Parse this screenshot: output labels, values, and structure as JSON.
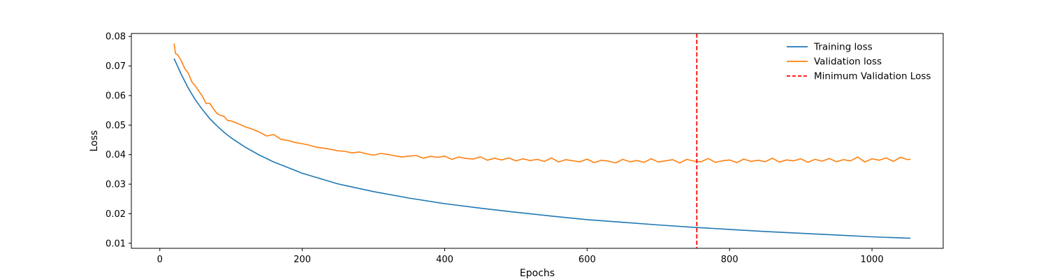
{
  "chart_data": {
    "type": "line",
    "title": "",
    "xlabel": "Epochs",
    "ylabel": "Loss",
    "xlim": [
      -40,
      1100
    ],
    "ylim": [
      0.0083,
      0.081
    ],
    "xticks": [
      0,
      200,
      400,
      600,
      800,
      1000
    ],
    "xtick_labels": [
      "0",
      "200",
      "400",
      "600",
      "800",
      "1000"
    ],
    "yticks": [
      0.01,
      0.02,
      0.03,
      0.04,
      0.05,
      0.06,
      0.07,
      0.08
    ],
    "ytick_labels": [
      "0.01",
      "0.02",
      "0.03",
      "0.04",
      "0.05",
      "0.06",
      "0.07",
      "0.08"
    ],
    "grid": false,
    "legend_position": "top-right",
    "series": [
      {
        "name": "Training loss",
        "color": "#1f77b4",
        "style": "solid",
        "x": [
          20,
          30,
          40,
          50,
          60,
          70,
          80,
          90,
          100,
          120,
          140,
          160,
          180,
          200,
          250,
          300,
          350,
          400,
          450,
          500,
          550,
          600,
          650,
          700,
          750,
          800,
          850,
          900,
          950,
          1000,
          1054
        ],
        "y": [
          0.0725,
          0.0672,
          0.0625,
          0.0585,
          0.0552,
          0.0522,
          0.0498,
          0.0476,
          0.0457,
          0.0425,
          0.0398,
          0.0375,
          0.0356,
          0.0337,
          0.0301,
          0.0275,
          0.0253,
          0.0234,
          0.0219,
          0.0205,
          0.0192,
          0.018,
          0.0171,
          0.0162,
          0.0154,
          0.0147,
          0.014,
          0.0134,
          0.0128,
          0.0122,
          0.0117
        ]
      },
      {
        "name": "Validation loss",
        "color": "#ff7f0e",
        "style": "solid",
        "x": [
          20,
          22,
          25,
          30,
          35,
          40,
          45,
          50,
          55,
          60,
          65,
          70,
          75,
          80,
          85,
          90,
          95,
          100,
          110,
          120,
          130,
          140,
          150,
          160,
          170,
          180,
          190,
          200,
          210,
          220,
          230,
          240,
          250,
          260,
          270,
          280,
          290,
          300,
          310,
          320,
          330,
          340,
          350,
          360,
          370,
          380,
          390,
          400,
          410,
          420,
          430,
          440,
          450,
          460,
          470,
          480,
          490,
          500,
          510,
          520,
          530,
          540,
          550,
          560,
          570,
          580,
          590,
          600,
          610,
          620,
          630,
          640,
          650,
          660,
          670,
          680,
          690,
          700,
          710,
          720,
          730,
          740,
          750,
          760,
          770,
          780,
          790,
          800,
          810,
          820,
          830,
          840,
          850,
          860,
          870,
          880,
          890,
          900,
          910,
          920,
          930,
          940,
          950,
          960,
          970,
          980,
          990,
          1000,
          1010,
          1020,
          1030,
          1040,
          1050,
          1054
        ],
        "y": [
          0.0776,
          0.0742,
          0.0738,
          0.0718,
          0.0692,
          0.0676,
          0.0646,
          0.0632,
          0.0614,
          0.0597,
          0.0573,
          0.0574,
          0.0556,
          0.054,
          0.0533,
          0.053,
          0.0516,
          0.0514,
          0.0505,
          0.0494,
          0.0486,
          0.0476,
          0.0463,
          0.0468,
          0.0452,
          0.0448,
          0.0441,
          0.0437,
          0.0432,
          0.0425,
          0.0422,
          0.0418,
          0.0413,
          0.0411,
          0.0406,
          0.0409,
          0.0403,
          0.0398,
          0.0404,
          0.0401,
          0.0396,
          0.0392,
          0.0395,
          0.0397,
          0.0388,
          0.0394,
          0.0391,
          0.0395,
          0.0384,
          0.0392,
          0.0387,
          0.0385,
          0.0393,
          0.0381,
          0.0388,
          0.0382,
          0.0389,
          0.0379,
          0.0386,
          0.038,
          0.0384,
          0.0377,
          0.0389,
          0.0375,
          0.0383,
          0.0379,
          0.0376,
          0.0385,
          0.0373,
          0.0381,
          0.0378,
          0.0372,
          0.0384,
          0.0376,
          0.038,
          0.0374,
          0.0386,
          0.0375,
          0.0379,
          0.0383,
          0.0372,
          0.0384,
          0.0378,
          0.0376,
          0.0387,
          0.0374,
          0.0379,
          0.0382,
          0.0373,
          0.0385,
          0.0377,
          0.0381,
          0.0376,
          0.0388,
          0.0375,
          0.0382,
          0.0379,
          0.0386,
          0.0374,
          0.0384,
          0.0378,
          0.0387,
          0.0376,
          0.0383,
          0.0379,
          0.0392,
          0.0375,
          0.0386,
          0.0381,
          0.0389,
          0.0377,
          0.0391,
          0.0383,
          0.0385
        ]
      }
    ],
    "vlines": [
      {
        "name": "Minimum Validation Loss",
        "x": 754,
        "color": "#ff0000",
        "style": "dashed"
      }
    ]
  }
}
